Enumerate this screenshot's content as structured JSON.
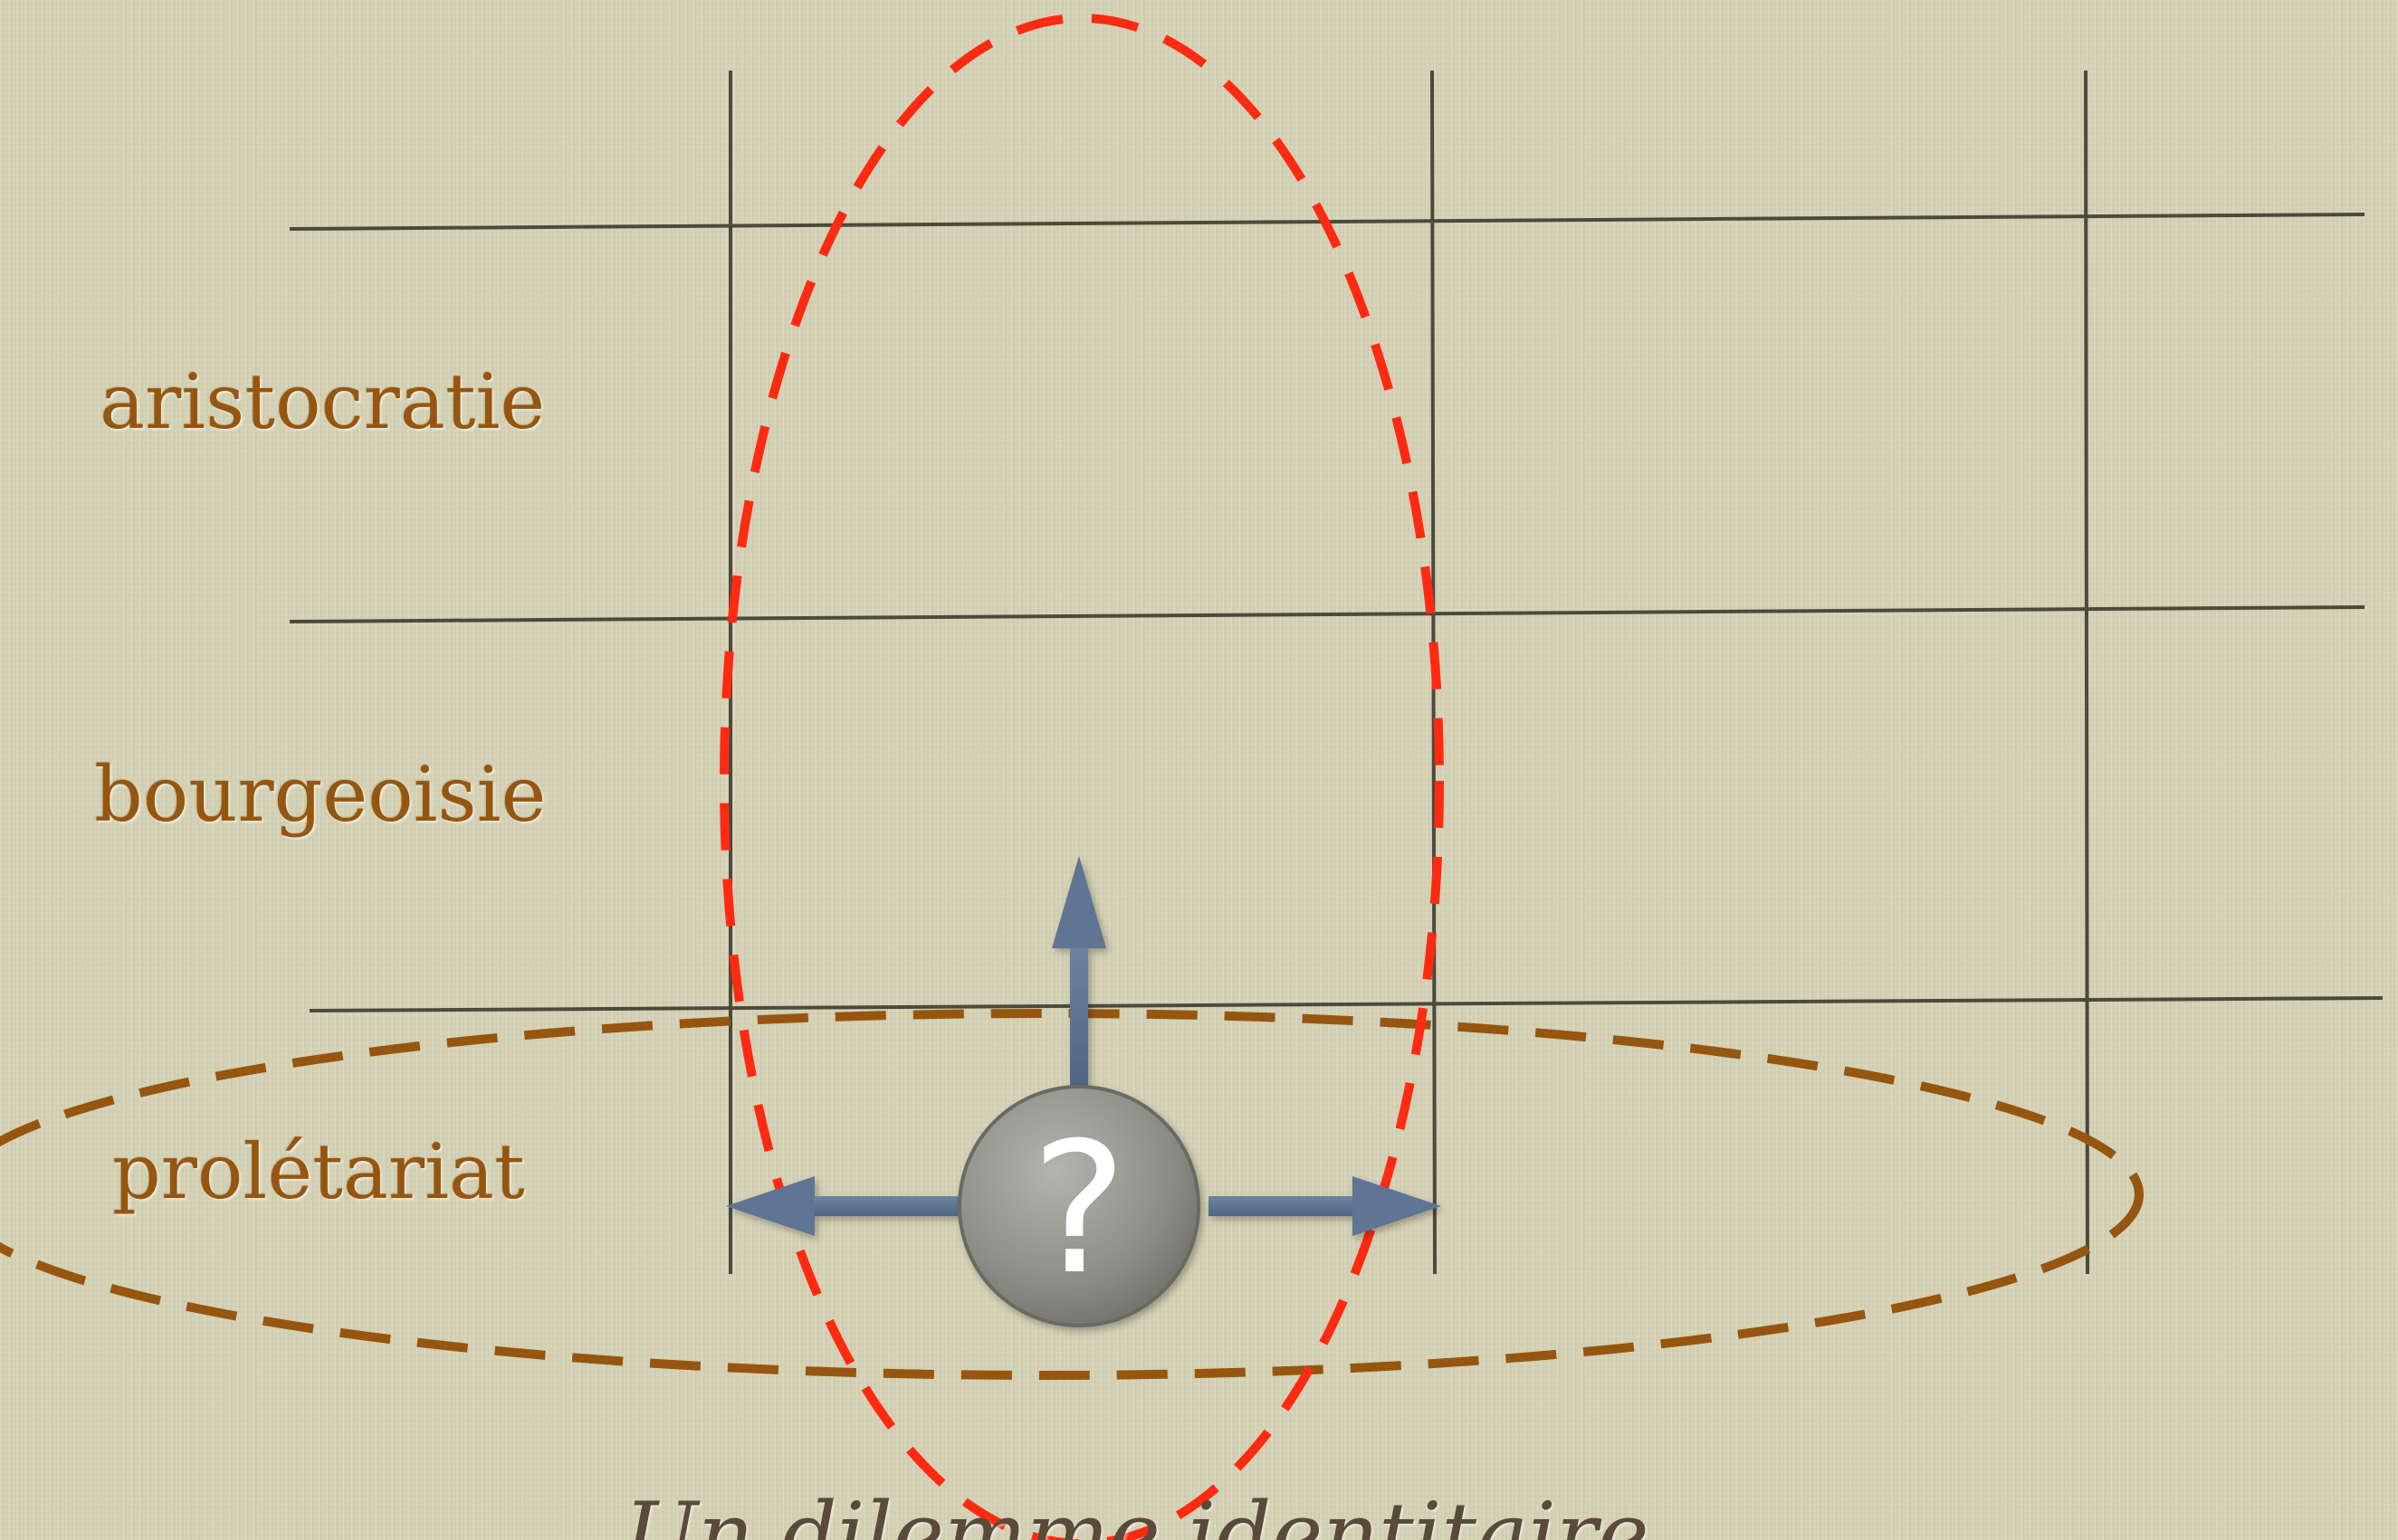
{
  "rows": {
    "aristocratie": "aristocratie",
    "bourgeoisie": "bourgeoisie",
    "proletariat": "prolétariat"
  },
  "center_symbol": "?",
  "caption": "Un dilemme identitaire",
  "colors": {
    "background": "#d4d1b3",
    "grid_line": "#4a4a3c",
    "row_label": "#96560f",
    "class_ellipse": "#96560f",
    "column_ellipse": "#ff2a12",
    "arrow": "#586f8c",
    "question_circle": "#8c8c86",
    "question_mark": "#ffffff"
  },
  "icons": {
    "arrows": [
      "arrow-up-icon",
      "arrow-left-icon",
      "arrow-right-icon"
    ],
    "center": "question-circle-icon"
  }
}
